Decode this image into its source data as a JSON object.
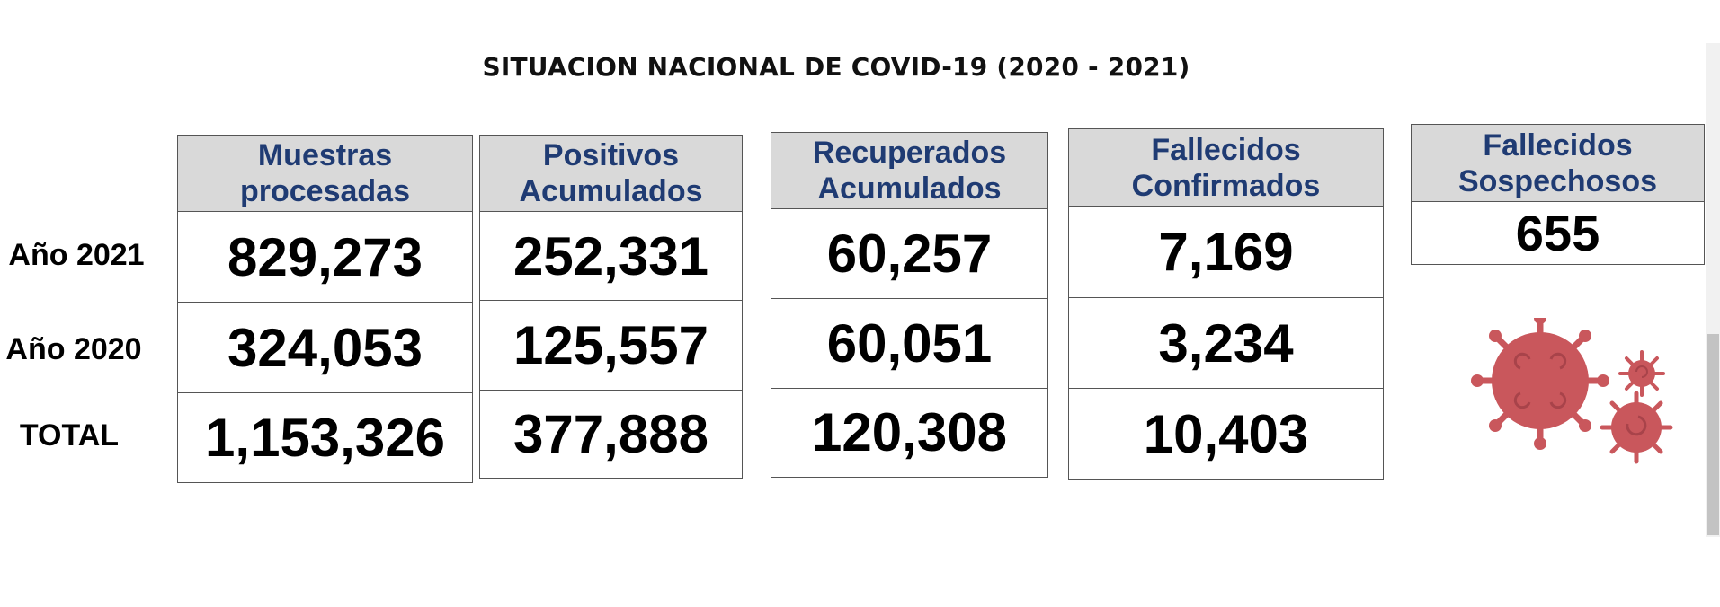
{
  "title": "SITUACION NACIONAL DE COVID-19 (2020 - 2021)",
  "rows": [
    "Año 2021",
    "Año 2020",
    "TOTAL"
  ],
  "columns": [
    {
      "header": [
        "Muestras",
        "procesadas"
      ],
      "values": [
        "829,273",
        "324,053",
        "1,153,326"
      ]
    },
    {
      "header": [
        "Positivos",
        "Acumulados"
      ],
      "values": [
        "252,331",
        "125,557",
        "377,888"
      ]
    },
    {
      "header": [
        "Recuperados",
        "Acumulados"
      ],
      "values": [
        "60,257",
        "60,051",
        "120,308"
      ]
    },
    {
      "header": [
        "Fallecidos",
        "Confirmados"
      ],
      "values": [
        "7,169",
        "3,234",
        "10,403"
      ]
    }
  ],
  "suspected": {
    "header": [
      "Fallecidos",
      "Sospechosos"
    ],
    "value": "655"
  },
  "icons": {
    "virus": "virus-icon"
  },
  "colors": {
    "header_bg": "#d9d9d9",
    "header_text": "#1f3b73",
    "virus": "#c9575c"
  }
}
